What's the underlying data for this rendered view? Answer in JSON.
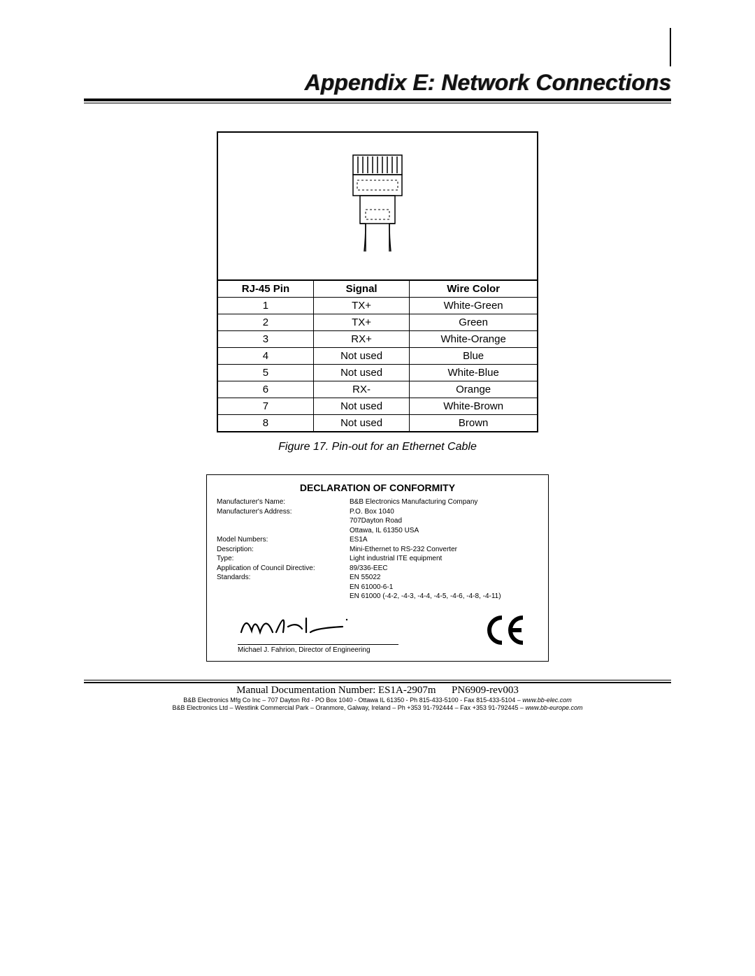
{
  "title": "Appendix E:  Network Connections",
  "pinout": {
    "headers": [
      "RJ-45 Pin",
      "Signal",
      "Wire Color"
    ],
    "rows": [
      [
        "1",
        "TX+",
        "White-Green"
      ],
      [
        "2",
        "TX+",
        "Green"
      ],
      [
        "3",
        "RX+",
        "White-Orange"
      ],
      [
        "4",
        "Not used",
        "Blue"
      ],
      [
        "5",
        "Not used",
        "White-Blue"
      ],
      [
        "6",
        "RX-",
        "Orange"
      ],
      [
        "7",
        "Not used",
        "White-Brown"
      ],
      [
        "8",
        "Not used",
        "Brown"
      ]
    ],
    "col_widths_pct": [
      30,
      30,
      40
    ]
  },
  "figure_caption": "Figure 17.  Pin-out for an Ethernet Cable",
  "doc": {
    "title": "DECLARATION OF CONFORMITY",
    "lines": [
      {
        "label": "Manufacturer's Name:",
        "value": "B&B Electronics Manufacturing Company"
      },
      {
        "label": "Manufacturer's Address:",
        "value": "P.O. Box 1040"
      },
      {
        "label": "",
        "value": "707Dayton Road"
      },
      {
        "label": "",
        "value": "Ottawa, IL 61350 USA"
      },
      {
        "label": "",
        "value": ""
      },
      {
        "label": "Model Numbers:",
        "value": "ES1A"
      },
      {
        "label": "Description:",
        "value": "Mini-Ethernet to RS-232 Converter"
      },
      {
        "label": "Type:",
        "value": "Light industrial ITE equipment"
      },
      {
        "label": "Application of Council Directive:",
        "value": "89/336-EEC"
      },
      {
        "label": "Standards:",
        "value": "EN 55022"
      },
      {
        "label": "",
        "value": "EN 61000-6-1"
      },
      {
        "label": "",
        "value": "EN 61000 (-4-2, -4-3, -4-4, -4-5, -4-6, -4-8, -4-11)"
      }
    ],
    "signatory": "Michael J. Fahrion, Director of Engineering",
    "ce": "CE"
  },
  "footer": {
    "main_left": "Manual Documentation Number: ES1A-2907m",
    "main_right": "PN6909-rev003",
    "line1_a": "B&B Electronics Mfg Co Inc – 707 Dayton Rd - PO Box 1040 - Ottawa IL 61350 - Ph 815-433-5100 - Fax 815-433-5104 – ",
    "line1_b": "www.bb-elec.com",
    "line2_a": "B&B Electronics Ltd – Westlink Commercial Park – Oranmore, Galway, Ireland – Ph +353 91-792444 – Fax +353 91-792445 – ",
    "line2_b": "www.bb-europe.com"
  }
}
